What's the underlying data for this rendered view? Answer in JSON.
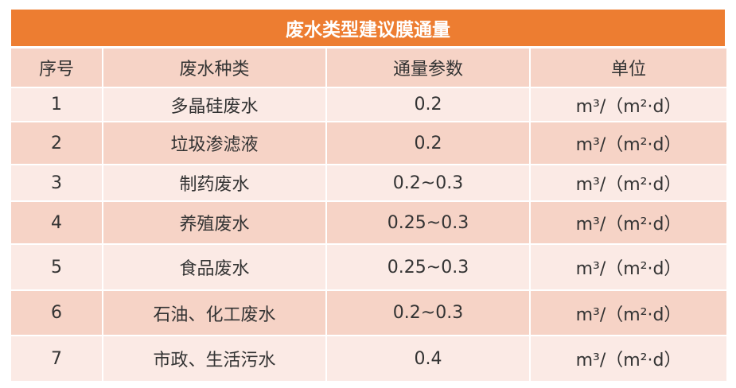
{
  "title": "废水类型建议膜通量",
  "colors": {
    "title_bg": "#ED7D31",
    "header_bg": "#F6D3C6",
    "row_light": "#FBEAE5",
    "row_dark": "#F6D3C6"
  },
  "headers": [
    "序号",
    "废水种类",
    "通量参数",
    "单位"
  ],
  "rows": [
    [
      "1",
      "多晶硅废水",
      "0.2",
      "m³/（m²·d）"
    ],
    [
      "2",
      "垃圾渗滤液",
      "0.2",
      "m³/（m²·d）"
    ],
    [
      "3",
      "制药废水",
      "0.2~0.3",
      "m³/（m²·d）"
    ],
    [
      "4",
      "养殖废水",
      "0.25~0.3",
      "m³/（m²·d）"
    ],
    [
      "5",
      "食品废水",
      "0.25~0.3",
      "m³/（m²·d）"
    ],
    [
      "6",
      "石油、化工废水",
      "0.2~0.3",
      "m³/（m²·d）"
    ],
    [
      "7",
      "市政、生活污水",
      "0.4",
      "m³/（m²·d）"
    ]
  ]
}
